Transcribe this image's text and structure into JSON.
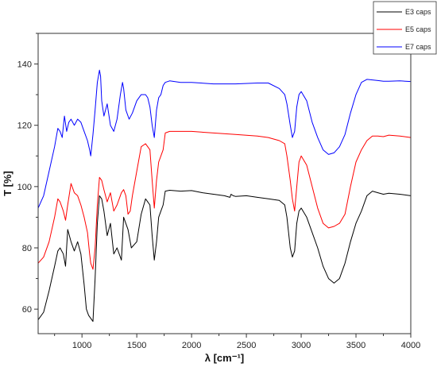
{
  "chart_data": {
    "type": "line",
    "xlabel": "λ [cm⁻¹]",
    "ylabel": "T [%]",
    "xlim": [
      600,
      4000
    ],
    "ylim": [
      52,
      150
    ],
    "x_ticks": [
      1000,
      1500,
      2000,
      2500,
      3000,
      3500,
      4000
    ],
    "y_ticks": [
      60,
      80,
      100,
      120,
      140
    ],
    "legend_position": "top-right",
    "series": [
      {
        "name": "E3 caps",
        "color": "#000000",
        "x": [
          600,
          650,
          700,
          750,
          780,
          800,
          830,
          850,
          870,
          900,
          930,
          960,
          990,
          1020,
          1040,
          1060,
          1080,
          1100,
          1120,
          1140,
          1160,
          1180,
          1200,
          1230,
          1260,
          1290,
          1320,
          1360,
          1380,
          1420,
          1450,
          1500,
          1540,
          1580,
          1600,
          1620,
          1640,
          1660,
          1680,
          1700,
          1720,
          1740,
          1760,
          1800,
          1900,
          2000,
          2100,
          2200,
          2300,
          2350,
          2360,
          2380,
          2400,
          2500,
          2600,
          2700,
          2800,
          2850,
          2870,
          2900,
          2920,
          2940,
          2960,
          2980,
          3000,
          3050,
          3100,
          3150,
          3200,
          3250,
          3300,
          3350,
          3400,
          3450,
          3500,
          3550,
          3600,
          3650,
          3700,
          3750,
          3800,
          3900,
          4000
        ],
        "y": [
          56.5,
          59,
          66,
          74,
          79,
          80,
          78,
          74,
          86,
          82,
          79,
          82,
          78,
          68,
          60,
          58,
          57,
          56,
          70,
          88,
          97,
          96,
          92,
          84,
          88,
          78,
          80,
          76,
          90,
          86,
          80,
          82,
          91,
          96,
          95,
          94,
          84,
          76,
          82,
          90,
          92,
          94,
          98.5,
          98.8,
          98.5,
          98.7,
          98,
          97.5,
          97,
          96.5,
          97.5,
          97,
          96.8,
          97,
          96.5,
          96,
          95.5,
          94,
          90,
          80,
          77,
          79,
          88,
          92,
          93,
          90,
          85,
          80,
          74,
          70,
          68.5,
          70,
          75,
          82,
          88,
          92,
          97,
          98.5,
          98,
          97.5,
          97.8,
          97.5,
          97
        ]
      },
      {
        "name": "E5 caps",
        "color": "#ff0000",
        "x": [
          600,
          650,
          700,
          750,
          780,
          800,
          830,
          850,
          870,
          900,
          930,
          960,
          990,
          1020,
          1050,
          1070,
          1080,
          1100,
          1120,
          1140,
          1160,
          1180,
          1200,
          1230,
          1260,
          1290,
          1320,
          1360,
          1380,
          1400,
          1420,
          1440,
          1460,
          1500,
          1540,
          1580,
          1600,
          1620,
          1640,
          1660,
          1680,
          1700,
          1720,
          1740,
          1760,
          1800,
          1900,
          2000,
          2200,
          2400,
          2600,
          2700,
          2800,
          2850,
          2870,
          2900,
          2920,
          2940,
          2960,
          2980,
          3000,
          3050,
          3100,
          3150,
          3200,
          3250,
          3300,
          3350,
          3400,
          3450,
          3500,
          3550,
          3600,
          3650,
          3700,
          3750,
          3800,
          3900,
          4000
        ],
        "y": [
          75,
          77,
          82,
          90,
          96,
          95,
          92,
          89,
          94,
          101,
          98,
          97,
          94,
          90,
          85,
          78,
          75,
          73,
          80,
          94,
          103,
          102,
          99,
          95,
          98,
          92,
          94,
          98,
          99,
          97,
          91,
          92,
          97,
          105,
          113,
          114,
          113,
          112,
          102,
          93,
          102,
          108,
          110,
          112,
          117.5,
          118,
          118,
          118,
          117.5,
          117,
          116.5,
          116,
          115,
          114,
          110,
          102,
          96,
          92,
          100,
          108,
          110,
          107,
          100,
          93,
          88,
          86.5,
          87,
          88,
          91,
          100,
          108,
          112,
          115,
          116.5,
          116.5,
          116.3,
          116.8,
          116.5,
          116
        ]
      },
      {
        "name": "E7 caps",
        "color": "#0000ff",
        "x": [
          600,
          650,
          700,
          750,
          780,
          800,
          820,
          840,
          860,
          880,
          900,
          930,
          960,
          990,
          1020,
          1050,
          1070,
          1080,
          1100,
          1120,
          1140,
          1160,
          1170,
          1180,
          1200,
          1230,
          1260,
          1290,
          1320,
          1350,
          1370,
          1380,
          1400,
          1430,
          1460,
          1500,
          1540,
          1580,
          1600,
          1620,
          1640,
          1660,
          1680,
          1700,
          1720,
          1740,
          1760,
          1800,
          1900,
          2000,
          2200,
          2400,
          2600,
          2700,
          2800,
          2850,
          2870,
          2900,
          2920,
          2940,
          2960,
          2980,
          3000,
          3050,
          3100,
          3150,
          3200,
          3250,
          3300,
          3350,
          3400,
          3450,
          3500,
          3550,
          3600,
          3650,
          3700,
          3750,
          3800,
          3900,
          4000
        ],
        "y": [
          93,
          97,
          105,
          113,
          119,
          118,
          116,
          123,
          118,
          121,
          122,
          120,
          122,
          121,
          118,
          115,
          112,
          110,
          117,
          125,
          134,
          138,
          136,
          128,
          123,
          127,
          120,
          118,
          122,
          130,
          134,
          132,
          125,
          122,
          124,
          128,
          130,
          130,
          129,
          126,
          120,
          116,
          125,
          129,
          130,
          133,
          134,
          134.5,
          134,
          134,
          133.5,
          133.5,
          133.8,
          133.8,
          132,
          130,
          127,
          120,
          116,
          118,
          126,
          130,
          131,
          128,
          121,
          116,
          112,
          110.5,
          111,
          113,
          117,
          124,
          130,
          134,
          135,
          134.8,
          134.6,
          134.4,
          134.4,
          134.5,
          134.3
        ]
      }
    ]
  }
}
